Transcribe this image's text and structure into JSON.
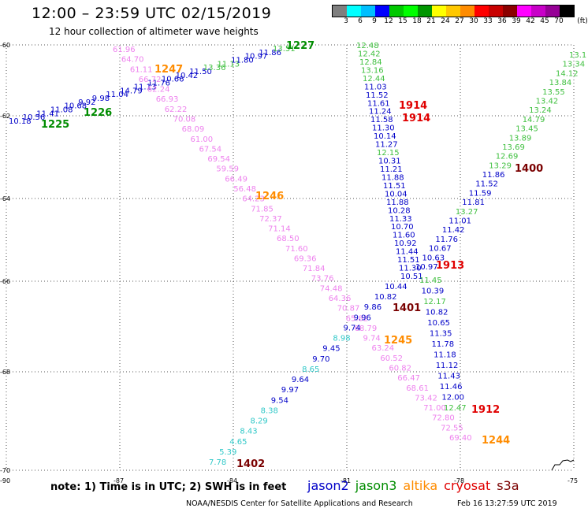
{
  "header": {
    "title": "12:00 – 23:59 UTC 02/15/2019",
    "subtitle": "12 hour collection of altimeter wave heights"
  },
  "legend": {
    "unit": "(ft)",
    "bins": [
      {
        "label": "3",
        "color": "#7f7f7f"
      },
      {
        "label": "6",
        "color": "#00ffff"
      },
      {
        "label": "9",
        "color": "#00bfff"
      },
      {
        "label": "12",
        "color": "#0000ff"
      },
      {
        "label": "15",
        "color": "#00c800"
      },
      {
        "label": "18",
        "color": "#00ff00"
      },
      {
        "label": "21",
        "color": "#009600"
      },
      {
        "label": "24",
        "color": "#ffff00"
      },
      {
        "label": "27",
        "color": "#ffc800"
      },
      {
        "label": "30",
        "color": "#ff8c00"
      },
      {
        "label": "33",
        "color": "#ff0000"
      },
      {
        "label": "36",
        "color": "#c80000"
      },
      {
        "label": "39",
        "color": "#8b0000"
      },
      {
        "label": "42",
        "color": "#ff00ff"
      },
      {
        "label": "45",
        "color": "#c800c8"
      },
      {
        "label": "70",
        "color": "#960096"
      },
      {
        "label": "",
        "color": "#000000"
      }
    ]
  },
  "axes": {
    "lat_labels": [
      "-60",
      "-62",
      "-64",
      "-66",
      "-68",
      "-70"
    ],
    "lon_labels": [
      "-90",
      "-87",
      "-84",
      "-81",
      "-78",
      "-75"
    ]
  },
  "colors": {
    "jason2": "#0000c8",
    "jason3": "#008c00",
    "altika": "#ff8c00",
    "cryosat": "#e00000",
    "s3a": "#7a0000",
    "low": "#30c8c8",
    "mid": "#40c040",
    "high": "#ee82ee"
  },
  "tracks": [
    {
      "id": "t1225",
      "color": "jason2",
      "points": [
        {
          "v": "10.18",
          "c": "jason2"
        },
        {
          "v": "10.56",
          "c": "jason2"
        },
        {
          "v": "11.41",
          "c": "jason2"
        },
        {
          "v": "11.08",
          "c": "jason2"
        },
        {
          "v": "10.68",
          "c": "jason2"
        },
        {
          "v": "9.92",
          "c": "jason2"
        },
        {
          "v": "9.98",
          "c": "jason2"
        },
        {
          "v": "11.04",
          "c": "jason2"
        },
        {
          "v": "14.79",
          "c": "jason2"
        },
        {
          "v": "11.13",
          "c": "jason2"
        },
        {
          "v": "11.76",
          "c": "jason2"
        },
        {
          "v": "10.66",
          "c": "jason2"
        },
        {
          "v": "10.42",
          "c": "jason2"
        },
        {
          "v": "11.50",
          "c": "jason2"
        },
        {
          "v": "13.36",
          "c": "mid"
        },
        {
          "v": "11.13",
          "c": "mid"
        },
        {
          "v": "11.80",
          "c": "jason2"
        },
        {
          "v": "10.97",
          "c": "jason2"
        },
        {
          "v": "11.86",
          "c": "jason2"
        },
        {
          "v": "13.51",
          "c": "mid"
        }
      ]
    },
    {
      "id": "t1247",
      "color": "high",
      "points": [
        {
          "v": "61.96"
        },
        {
          "v": "64.70"
        },
        {
          "v": "61.11"
        },
        {
          "v": "66.72"
        },
        {
          "v": "62.24"
        },
        {
          "v": "66.93"
        },
        {
          "v": "62.22"
        },
        {
          "v": "70.08"
        },
        {
          "v": "68.09"
        },
        {
          "v": "61.00"
        },
        {
          "v": "67.54"
        },
        {
          "v": "69.54"
        },
        {
          "v": "59.59"
        },
        {
          "v": "66.49"
        },
        {
          "v": "56.48"
        },
        {
          "v": "64.23"
        },
        {
          "v": "71.85"
        },
        {
          "v": "72.37"
        },
        {
          "v": "71.14"
        },
        {
          "v": "68.50"
        },
        {
          "v": "71.60"
        },
        {
          "v": "69.36"
        },
        {
          "v": "71.84"
        },
        {
          "v": "73.76"
        },
        {
          "v": "74.48"
        },
        {
          "v": "64.36"
        },
        {
          "v": "70.87"
        },
        {
          "v": "65.82"
        },
        {
          "v": "68.79"
        },
        {
          "v": "9.74"
        },
        {
          "v": "63.24"
        },
        {
          "v": "60.52"
        },
        {
          "v": "60.82"
        },
        {
          "v": "66.47"
        },
        {
          "v": "68.61"
        },
        {
          "v": "73.42"
        },
        {
          "v": "71.00"
        },
        {
          "v": "72.80"
        },
        {
          "v": "72.55"
        },
        {
          "v": "69.40"
        }
      ]
    },
    {
      "id": "t1914",
      "color": "jason2",
      "points": [
        {
          "v": "12.48",
          "c": "mid"
        },
        {
          "v": "12.42",
          "c": "mid"
        },
        {
          "v": "12.84",
          "c": "mid"
        },
        {
          "v": "13.16",
          "c": "mid"
        },
        {
          "v": "12.44",
          "c": "mid"
        },
        {
          "v": "11.03"
        },
        {
          "v": "11.52"
        },
        {
          "v": "11.61"
        },
        {
          "v": "11.24"
        },
        {
          "v": "11.58"
        },
        {
          "v": "11.30"
        },
        {
          "v": "10.14"
        },
        {
          "v": "11.27"
        },
        {
          "v": "12.15",
          "c": "mid"
        },
        {
          "v": "10.31"
        },
        {
          "v": "11.21"
        },
        {
          "v": "11.88"
        },
        {
          "v": "11.51"
        },
        {
          "v": "10.04"
        },
        {
          "v": "11.88"
        },
        {
          "v": "10.28"
        },
        {
          "v": "11.33"
        },
        {
          "v": "10.70"
        },
        {
          "v": "11.60"
        },
        {
          "v": "10.92"
        },
        {
          "v": "11.44"
        },
        {
          "v": "11.51"
        },
        {
          "v": "11.30"
        },
        {
          "v": "10.51"
        }
      ]
    },
    {
      "id": "t1913",
      "color": "jason2",
      "points": [
        {
          "v": "10.44"
        },
        {
          "v": "10.82"
        },
        {
          "v": "9.86"
        },
        {
          "v": "9.96"
        },
        {
          "v": "9.74"
        },
        {
          "v": "8.98",
          "c": "low"
        },
        {
          "v": "9.45"
        },
        {
          "v": "9.70"
        },
        {
          "v": "8.65",
          "c": "low"
        },
        {
          "v": "9.64"
        },
        {
          "v": "9.97"
        },
        {
          "v": "9.54"
        },
        {
          "v": "8.38",
          "c": "low"
        },
        {
          "v": "8.29",
          "c": "low"
        },
        {
          "v": "8.43",
          "c": "low"
        },
        {
          "v": "4.65",
          "c": "low"
        },
        {
          "v": "5.39",
          "c": "low"
        },
        {
          "v": "7.78",
          "c": "low"
        }
      ]
    },
    {
      "id": "t1400",
      "color": "jason2",
      "points": [
        {
          "v": "13.1",
          "c": "mid"
        },
        {
          "v": "13.34",
          "c": "mid"
        },
        {
          "v": "14.12",
          "c": "mid"
        },
        {
          "v": "13.84",
          "c": "mid"
        },
        {
          "v": "13.55",
          "c": "mid"
        },
        {
          "v": "13.42",
          "c": "mid"
        },
        {
          "v": "13.24",
          "c": "mid"
        },
        {
          "v": "14.79",
          "c": "mid"
        },
        {
          "v": "13.45",
          "c": "mid"
        },
        {
          "v": "13.89",
          "c": "mid"
        },
        {
          "v": "13.69",
          "c": "mid"
        },
        {
          "v": "12.69",
          "c": "mid"
        },
        {
          "v": "13.29",
          "c": "mid"
        },
        {
          "v": "11.86"
        },
        {
          "v": "11.52"
        },
        {
          "v": "11.59"
        },
        {
          "v": "11.81"
        },
        {
          "v": "13.27",
          "c": "mid"
        },
        {
          "v": "11.01"
        },
        {
          "v": "11.42"
        },
        {
          "v": "11.76"
        },
        {
          "v": "10.67"
        },
        {
          "v": "10.63"
        },
        {
          "v": "10.97"
        }
      ]
    },
    {
      "id": "t1912",
      "color": "jason2",
      "points": [
        {
          "v": "11.45",
          "c": "mid"
        },
        {
          "v": "10.39"
        },
        {
          "v": "12.17",
          "c": "mid"
        },
        {
          "v": "10.82"
        },
        {
          "v": "10.65"
        },
        {
          "v": "11.35"
        },
        {
          "v": "11.78"
        },
        {
          "v": "11.18"
        },
        {
          "v": "11.12"
        },
        {
          "v": "11.43"
        },
        {
          "v": "11.46"
        },
        {
          "v": "12.00"
        },
        {
          "v": "12.47",
          "c": "mid"
        }
      ]
    }
  ],
  "orbits": [
    {
      "label": "1227",
      "color": "jason3"
    },
    {
      "label": "1226",
      "color": "jason3"
    },
    {
      "label": "1225",
      "color": "jason3"
    },
    {
      "label": "1247",
      "color": "altika"
    },
    {
      "label": "1246",
      "color": "altika"
    },
    {
      "label": "1245",
      "color": "altika"
    },
    {
      "label": "1244",
      "color": "altika"
    },
    {
      "label": "1914",
      "color": "cryosat"
    },
    {
      "label": "1914",
      "color": "cryosat"
    },
    {
      "label": "1913",
      "color": "cryosat"
    },
    {
      "label": "1912",
      "color": "cryosat"
    },
    {
      "label": "1400",
      "color": "s3a"
    },
    {
      "label": "1401",
      "color": "s3a"
    },
    {
      "label": "1402",
      "color": "s3a"
    }
  ],
  "footer": {
    "note": "note: 1) Time is in UTC; 2) SWH is in feet",
    "satellites": [
      {
        "name": "jason2",
        "color": "jason2"
      },
      {
        "name": "jason3",
        "color": "jason3"
      },
      {
        "name": "altika",
        "color": "altika"
      },
      {
        "name": "cryosat",
        "color": "cryosat"
      },
      {
        "name": "s3a",
        "color": "s3a"
      }
    ],
    "credit": "NOAA/NESDIS Center for Satellite Applications and Research",
    "timestamp": "Feb 16 13:27:59 UTC 2019"
  }
}
